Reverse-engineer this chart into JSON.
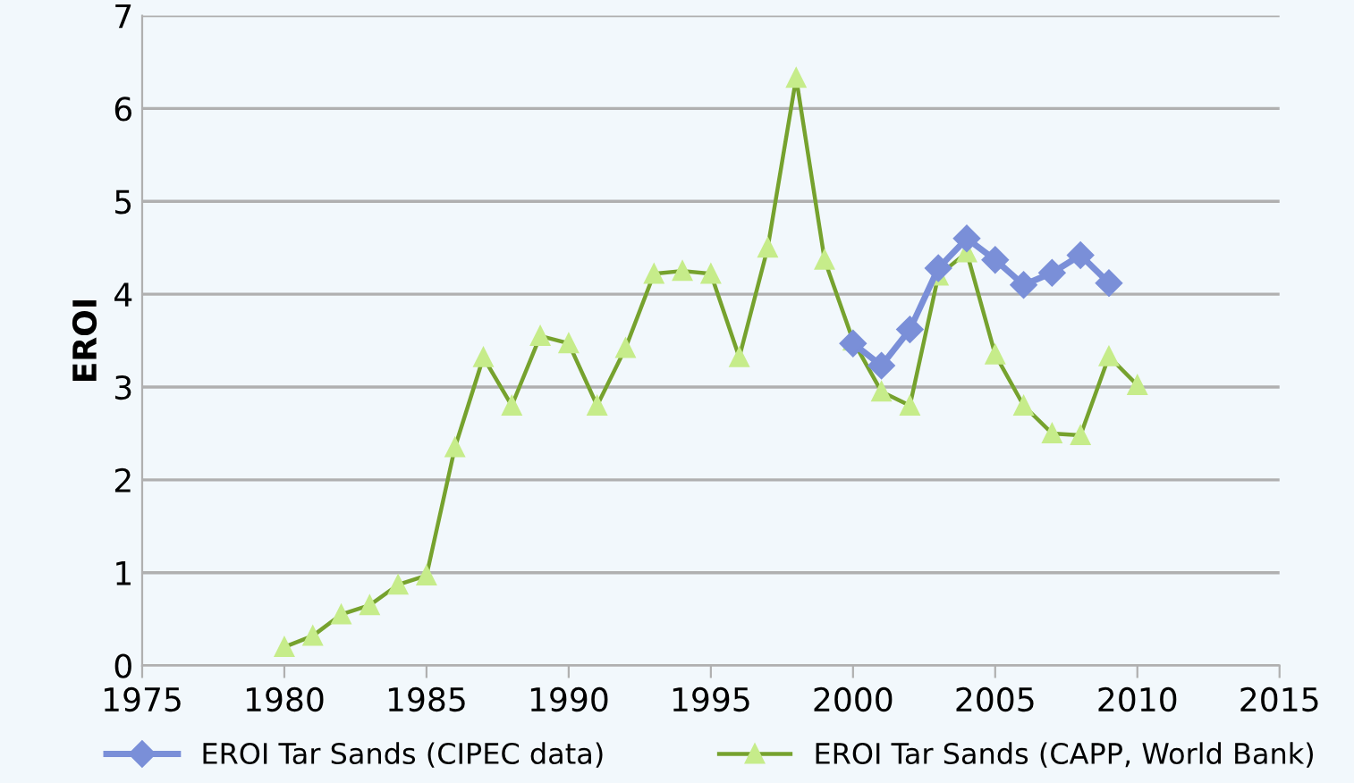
{
  "chart_data": {
    "type": "line",
    "ylabel": "EROI",
    "xlim": [
      1975,
      2015
    ],
    "xticks": [
      1975,
      1980,
      1985,
      1990,
      1995,
      2000,
      2005,
      2010,
      2015
    ],
    "ylim": [
      0,
      7
    ],
    "yticks": [
      0,
      1,
      2,
      3,
      4,
      5,
      6,
      7
    ],
    "grid": "y",
    "legend": "bottom",
    "series": [
      {
        "name": "EROI Tar Sands (CIPEC data)",
        "color": "#7a8fd8",
        "marker": "diamond",
        "x": [
          2000,
          2001,
          2002,
          2003,
          2004,
          2005,
          2006,
          2007,
          2008,
          2009
        ],
        "values": [
          3.47,
          3.23,
          3.62,
          4.28,
          4.6,
          4.37,
          4.1,
          4.23,
          4.42,
          4.12
        ]
      },
      {
        "name": "EROI Tar Sands (CAPP, World Bank)",
        "color": "#76a22e",
        "marker": "triangle",
        "x": [
          1980,
          1981,
          1982,
          1983,
          1984,
          1985,
          1986,
          1987,
          1988,
          1989,
          1990,
          1991,
          1992,
          1993,
          1994,
          1995,
          1996,
          1997,
          1998,
          1999,
          2000,
          2001,
          2002,
          2003,
          2004,
          2005,
          2006,
          2007,
          2008,
          2009,
          2010
        ],
        "values": [
          0.2,
          0.32,
          0.55,
          0.65,
          0.87,
          0.97,
          2.35,
          3.32,
          2.8,
          3.55,
          3.47,
          2.8,
          3.42,
          4.22,
          4.25,
          4.22,
          3.32,
          4.5,
          6.33,
          4.37,
          3.5,
          2.95,
          2.8,
          4.2,
          4.45,
          3.35,
          2.8,
          2.5,
          2.48,
          3.33,
          3.02
        ]
      }
    ]
  }
}
